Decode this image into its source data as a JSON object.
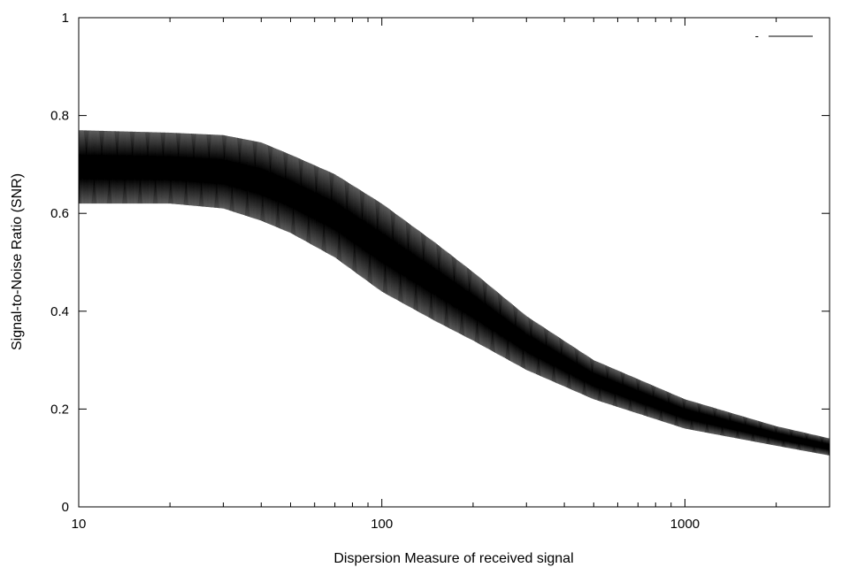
{
  "chart_data": {
    "type": "line",
    "title": "",
    "xlabel": "Dispersion Measure of received signal",
    "ylabel": "Signal-to-Noise Ratio (SNR)",
    "x_scale": "log",
    "xlim": [
      10,
      3000
    ],
    "ylim": [
      0,
      1
    ],
    "x_ticks": [
      {
        "value": 10,
        "label": "10"
      },
      {
        "value": 100,
        "label": "100"
      },
      {
        "value": 1000,
        "label": "1000"
      }
    ],
    "y_ticks": [
      {
        "value": 0,
        "label": "0"
      },
      {
        "value": 0.2,
        "label": "0.2"
      },
      {
        "value": 0.4,
        "label": "0.4"
      },
      {
        "value": 0.6,
        "label": "0.6"
      },
      {
        "value": 0.8,
        "label": "0.8"
      },
      {
        "value": 1,
        "label": "1"
      }
    ],
    "grid": false,
    "legend_position": "top-right",
    "series": [
      {
        "name": "-",
        "color": "#000000",
        "oscillation": "rapid oscillation between an upper and a lower envelope",
        "envelope_points": [
          {
            "x": 10,
            "upper": 0.77,
            "lower": 0.62
          },
          {
            "x": 20,
            "upper": 0.765,
            "lower": 0.62
          },
          {
            "x": 30,
            "upper": 0.76,
            "lower": 0.61
          },
          {
            "x": 40,
            "upper": 0.745,
            "lower": 0.585
          },
          {
            "x": 50,
            "upper": 0.72,
            "lower": 0.56
          },
          {
            "x": 70,
            "upper": 0.68,
            "lower": 0.51
          },
          {
            "x": 100,
            "upper": 0.62,
            "lower": 0.44
          },
          {
            "x": 150,
            "upper": 0.54,
            "lower": 0.38
          },
          {
            "x": 200,
            "upper": 0.48,
            "lower": 0.34
          },
          {
            "x": 300,
            "upper": 0.39,
            "lower": 0.28
          },
          {
            "x": 500,
            "upper": 0.3,
            "lower": 0.22
          },
          {
            "x": 1000,
            "upper": 0.22,
            "lower": 0.16
          },
          {
            "x": 2000,
            "upper": 0.165,
            "lower": 0.125
          },
          {
            "x": 3000,
            "upper": 0.14,
            "lower": 0.105
          }
        ]
      }
    ]
  }
}
